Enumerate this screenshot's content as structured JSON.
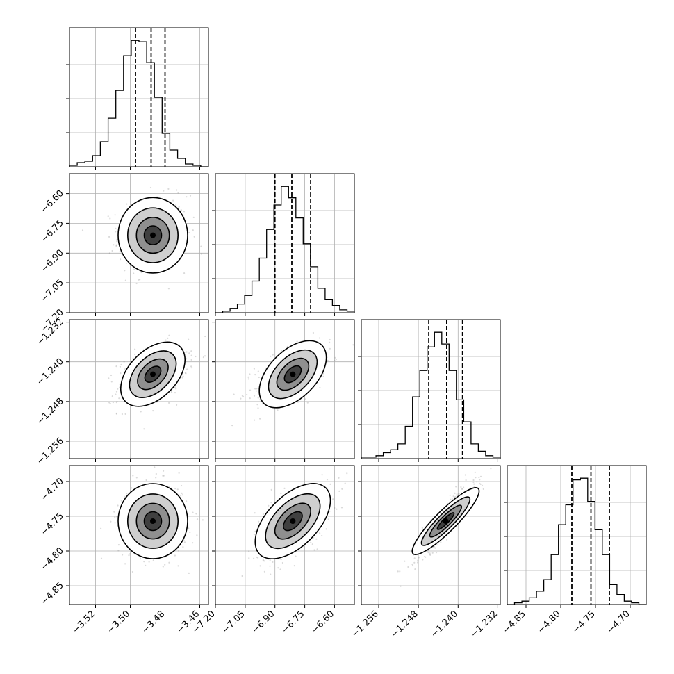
{
  "chart_data": {
    "type": "corner",
    "grid": true,
    "quantile_lines": "dashed",
    "parameters": [
      {
        "range": [
          -3.535,
          -3.455
        ],
        "ticks": [
          "−3.52",
          "−3.50",
          "−3.48",
          "−3.46"
        ],
        "tick_values": [
          -3.52,
          -3.5,
          -3.48,
          -3.46
        ],
        "center": -3.487,
        "spread": 0.01,
        "quantiles": [
          -3.497,
          -3.488,
          -3.48
        ],
        "hist_counts": [
          1,
          3,
          4,
          8,
          18,
          35,
          55,
          80,
          91,
          90,
          75,
          50,
          24,
          12,
          6,
          2,
          1,
          0
        ]
      },
      {
        "range": [
          -7.2,
          -6.5
        ],
        "ticks": [
          "−7.20",
          "−7.05",
          "−6.90",
          "−6.75",
          "−6.60"
        ],
        "tick_values": [
          -7.2,
          -7.05,
          -6.9,
          -6.75,
          -6.6
        ],
        "center": -6.81,
        "spread": 0.095,
        "quantiles": [
          -6.9,
          -6.815,
          -6.72
        ],
        "hist_counts": [
          0,
          1,
          3,
          6,
          12,
          22,
          38,
          58,
          75,
          88,
          80,
          66,
          48,
          32,
          17,
          9,
          5,
          2,
          1
        ]
      },
      {
        "range": [
          -1.2595,
          -1.2315
        ],
        "ticks": [
          "−1.256",
          "−1.248",
          "−1.240",
          "−1.232"
        ],
        "tick_values": [
          -1.256,
          -1.248,
          -1.24,
          -1.232
        ],
        "center": -1.2425,
        "spread": 0.003,
        "quantiles": [
          -1.2459,
          -1.2423,
          -1.2391
        ],
        "hist_counts": [
          1,
          1,
          2,
          4,
          6,
          10,
          22,
          42,
          60,
          76,
          86,
          78,
          60,
          40,
          25,
          10,
          5,
          2,
          1
        ]
      },
      {
        "range": [
          -4.877,
          -4.677
        ],
        "ticks": [
          "−4.85",
          "−4.80",
          "−4.75",
          "−4.70"
        ],
        "tick_values": [
          -4.85,
          -4.8,
          -4.75,
          -4.7
        ],
        "center": -4.757,
        "spread": 0.027,
        "quantiles": [
          -4.784,
          -4.7565,
          -4.73
        ],
        "hist_counts": [
          0,
          1,
          2,
          4,
          8,
          15,
          30,
          48,
          60,
          75,
          76,
          62,
          45,
          30,
          12,
          6,
          2,
          1,
          0
        ]
      }
    ],
    "correlations": {
      "1-0": 0.05,
      "2-0": 0.45,
      "2-1": 0.5,
      "3-0": 0.05,
      "3-1": 0.55,
      "3-2": 0.9
    },
    "n_scatter_points": 450
  }
}
